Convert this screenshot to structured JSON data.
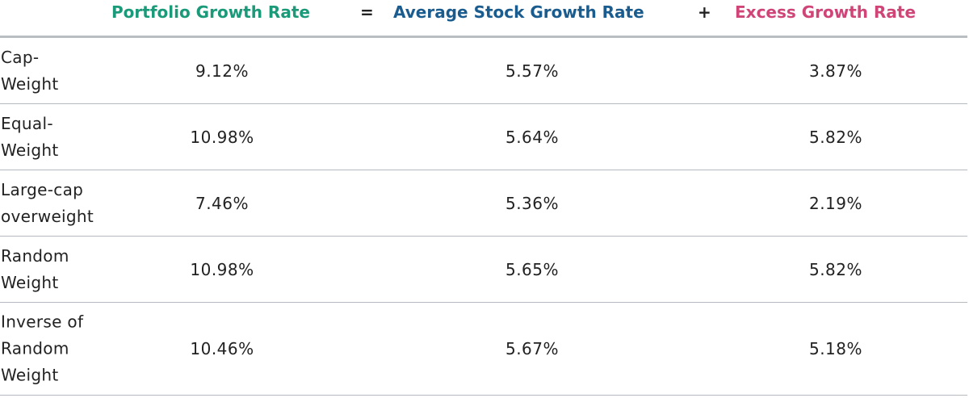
{
  "header": {
    "portfolio_growth_rate": "Portfolio Growth Rate",
    "equals": "=",
    "average_stock_growth_rate": "Average Stock Growth Rate",
    "plus": "+",
    "excess_growth_rate": "Excess Growth Rate",
    "colors": {
      "portfolio": "#1a9a78",
      "average": "#1b5c8f",
      "excess": "#d04577"
    }
  },
  "rows": [
    {
      "label_lines": [
        "Cap-",
        "Weight"
      ],
      "portfolio": "9.12%",
      "average": "5.57%",
      "excess": "3.87%"
    },
    {
      "label_lines": [
        "Equal-",
        "Weight"
      ],
      "portfolio": "10.98%",
      "average": "5.64%",
      "excess": "5.82%"
    },
    {
      "label_lines": [
        "Large-cap",
        "overweight"
      ],
      "portfolio": "7.46%",
      "average": "5.36%",
      "excess": "2.19%"
    },
    {
      "label_lines": [
        "Random",
        "Weight"
      ],
      "portfolio": "10.98%",
      "average": "5.65%",
      "excess": "5.82%"
    },
    {
      "label_lines": [
        "Inverse of",
        "Random",
        "Weight"
      ],
      "portfolio": "10.46%",
      "average": "5.67%",
      "excess": "5.18%"
    }
  ]
}
